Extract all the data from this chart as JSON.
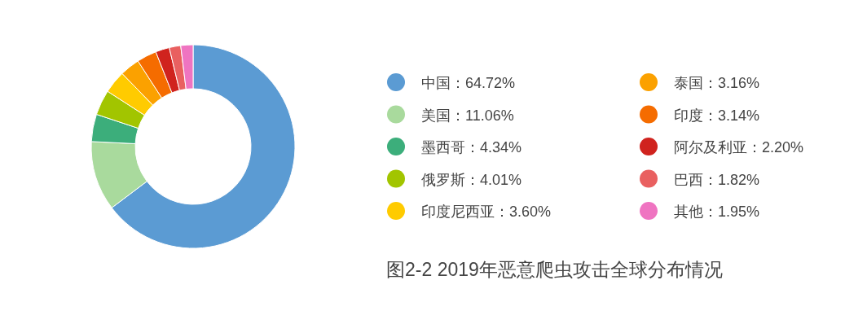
{
  "chart_data": {
    "type": "donut",
    "title": "图2-2  2019年恶意爬虫攻击全球分布情况",
    "categories": [
      "中国",
      "美国",
      "墨西哥",
      "俄罗斯",
      "印度尼西亚",
      "泰国",
      "印度",
      "阿尔及利亚",
      "巴西",
      "其他"
    ],
    "values": [
      64.72,
      11.06,
      4.34,
      4.01,
      3.6,
      3.16,
      3.14,
      2.2,
      1.82,
      1.95
    ],
    "value_labels": [
      "64.72%",
      "11.06%",
      "4.34%",
      "4.01%",
      "3.60%",
      "3.16%",
      "3.14%",
      "2.20%",
      "1.82%",
      "1.95%"
    ],
    "colors": [
      "#5b9bd3",
      "#a9da9d",
      "#3cae7b",
      "#a2c500",
      "#ffcb00",
      "#fba100",
      "#f56c00",
      "#d0231e",
      "#e96060",
      "#ef74c1"
    ],
    "legend": "right"
  }
}
